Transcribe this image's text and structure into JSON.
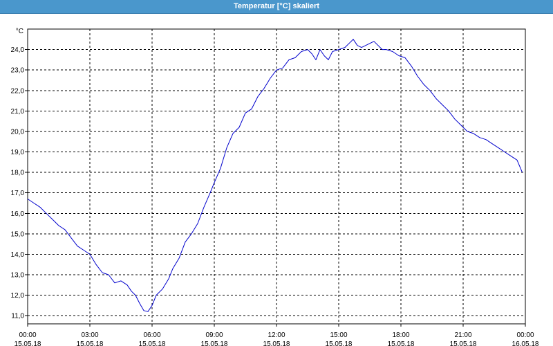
{
  "window": {
    "title": "Temperatur [°C] skaliert"
  },
  "chart_data": {
    "type": "line",
    "title": "Temperatur [°C] skaliert",
    "ylabel": "°C",
    "xlabel": "",
    "ylim": [
      10.6,
      25.0
    ],
    "xlim": [
      0,
      24
    ],
    "yticks": [
      "11,0",
      "12,0",
      "13,0",
      "14,0",
      "15,0",
      "16,0",
      "17,0",
      "18,0",
      "19,0",
      "20,0",
      "21,0",
      "22,0",
      "23,0",
      "24,0"
    ],
    "xticks": [
      {
        "time": "00:00",
        "date": "15.05.18",
        "hour": 0
      },
      {
        "time": "03:00",
        "date": "15.05.18",
        "hour": 3
      },
      {
        "time": "06:00",
        "date": "15.05.18",
        "hour": 6
      },
      {
        "time": "09:00",
        "date": "15.05.18",
        "hour": 9
      },
      {
        "time": "12:00",
        "date": "15.05.18",
        "hour": 12
      },
      {
        "time": "15:00",
        "date": "15.05.18",
        "hour": 15
      },
      {
        "time": "18:00",
        "date": "15.05.18",
        "hour": 18
      },
      {
        "time": "21:00",
        "date": "15.05.18",
        "hour": 21
      },
      {
        "time": "00:00",
        "date": "16.05.18",
        "hour": 24
      }
    ],
    "grid": true,
    "line_color": "#0000cc",
    "series": [
      {
        "x": [
          0,
          0.3,
          0.6,
          0.9,
          1.2,
          1.5,
          1.8,
          2.1,
          2.4,
          2.7,
          3.0,
          3.3,
          3.6,
          3.9,
          4.2,
          4.5,
          4.8,
          5.0,
          5.2,
          5.4,
          5.6,
          5.8,
          6.0,
          6.2,
          6.5,
          6.8,
          7.0,
          7.3,
          7.6,
          7.9,
          8.2,
          8.5,
          8.8,
          9.0,
          9.3,
          9.6,
          9.9,
          10.2,
          10.5,
          10.8,
          11.1,
          11.4,
          11.7,
          12.0,
          12.3,
          12.6,
          12.9,
          13.2,
          13.5,
          13.7,
          13.9,
          14.1,
          14.3,
          14.5,
          14.7,
          15.0,
          15.3,
          15.5,
          15.7,
          15.9,
          16.1,
          16.3,
          16.5,
          16.7,
          16.9,
          17.1,
          17.3,
          17.6,
          17.9,
          18.2,
          18.5,
          18.8,
          19.1,
          19.4,
          19.7,
          20.0,
          20.3,
          20.6,
          20.9,
          21.2,
          21.5,
          21.8,
          22.1,
          22.4,
          22.7,
          23.0,
          23.3,
          23.6,
          23.85
        ],
        "values": [
          16.7,
          16.5,
          16.3,
          16.0,
          15.7,
          15.4,
          15.2,
          14.8,
          14.4,
          14.2,
          14.0,
          13.5,
          13.1,
          13.0,
          12.6,
          12.7,
          12.5,
          12.2,
          12.0,
          11.6,
          11.25,
          11.2,
          11.5,
          12.0,
          12.3,
          12.8,
          13.3,
          13.8,
          14.6,
          15.0,
          15.5,
          16.3,
          17.0,
          17.5,
          18.2,
          19.2,
          19.9,
          20.2,
          20.9,
          21.1,
          21.7,
          22.1,
          22.6,
          23.0,
          23.1,
          23.5,
          23.6,
          23.9,
          24.0,
          23.8,
          23.5,
          24.0,
          23.7,
          23.5,
          23.9,
          24.0,
          24.1,
          24.3,
          24.5,
          24.2,
          24.1,
          24.2,
          24.3,
          24.4,
          24.2,
          24.0,
          24.0,
          23.9,
          23.7,
          23.6,
          23.2,
          22.7,
          22.3,
          22.0,
          21.6,
          21.3,
          21.0,
          20.6,
          20.3,
          20.0,
          19.9,
          19.7,
          19.6,
          19.4,
          19.2,
          19.0,
          18.8,
          18.6,
          18.0
        ]
      }
    ]
  }
}
